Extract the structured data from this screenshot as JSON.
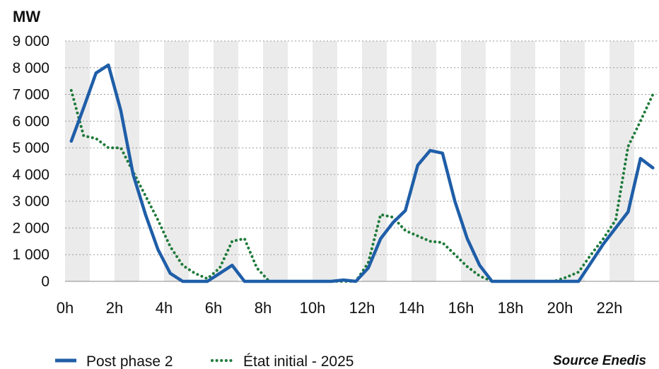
{
  "chart_data": {
    "type": "line",
    "unit_label": "MW",
    "ylim": [
      0,
      9000
    ],
    "yticks": [
      0,
      1000,
      2000,
      3000,
      4000,
      5000,
      6000,
      7000,
      8000,
      9000
    ],
    "ytick_labels": [
      "0",
      "1 000",
      "2 000",
      "3 000",
      "4 000",
      "5 000",
      "6 000",
      "7 000",
      "8 000",
      "9 000"
    ],
    "xlim": [
      0,
      24
    ],
    "xticks": [
      0,
      2,
      4,
      6,
      8,
      10,
      12,
      14,
      16,
      18,
      20,
      22
    ],
    "xtick_labels": [
      "0h",
      "2h",
      "4h",
      "6h",
      "8h",
      "10h",
      "12h",
      "14h",
      "16h",
      "18h",
      "20h",
      "22h"
    ],
    "grid": true,
    "legend_position": "bottom-left",
    "series": [
      {
        "name": "Post phase 2",
        "style": "solid",
        "color": "#1f5ea8",
        "x": [
          0.25,
          0.75,
          1.25,
          1.75,
          2.25,
          2.75,
          3.25,
          3.75,
          4.25,
          4.75,
          5.25,
          5.75,
          6.25,
          6.75,
          7.25,
          7.75,
          8.25,
          8.75,
          9.25,
          9.75,
          10.25,
          10.75,
          11.25,
          11.75,
          12.25,
          12.75,
          13.25,
          13.75,
          14.25,
          14.75,
          15.25,
          15.75,
          16.25,
          16.75,
          17.25,
          17.75,
          18.25,
          18.75,
          19.25,
          19.75,
          20.25,
          20.75,
          21.25,
          21.75,
          22.25,
          22.75,
          23.25,
          23.75
        ],
        "values": [
          5250,
          6500,
          7800,
          8100,
          6400,
          4000,
          2500,
          1200,
          300,
          0,
          0,
          0,
          300,
          600,
          0,
          0,
          0,
          0,
          0,
          0,
          0,
          0,
          50,
          0,
          500,
          1600,
          2200,
          2650,
          4350,
          4900,
          4800,
          3000,
          1600,
          600,
          0,
          0,
          0,
          0,
          0,
          0,
          0,
          0,
          700,
          1400,
          2000,
          2600,
          4600,
          4250
        ]
      },
      {
        "name": "État initial - 2025",
        "style": "dotted",
        "color": "#1e7a3a",
        "x": [
          0.25,
          0.75,
          1.25,
          1.75,
          2.25,
          2.75,
          3.25,
          3.75,
          4.25,
          4.75,
          5.25,
          5.75,
          6.25,
          6.75,
          7.25,
          7.75,
          8.25,
          8.75,
          9.25,
          9.75,
          10.25,
          10.75,
          11.25,
          11.75,
          12.25,
          12.75,
          13.25,
          13.75,
          14.25,
          14.75,
          15.25,
          15.75,
          16.25,
          16.75,
          17.25,
          17.75,
          18.25,
          18.75,
          19.25,
          19.75,
          20.25,
          20.75,
          21.25,
          21.75,
          22.25,
          22.75,
          23.25,
          23.75
        ],
        "values": [
          7150,
          5450,
          5350,
          5000,
          5000,
          4100,
          3200,
          2300,
          1300,
          600,
          300,
          100,
          500,
          1500,
          1600,
          500,
          0,
          0,
          0,
          0,
          0,
          0,
          0,
          0,
          700,
          2500,
          2400,
          1900,
          1700,
          1500,
          1450,
          1000,
          550,
          200,
          0,
          0,
          0,
          0,
          0,
          0,
          150,
          350,
          1000,
          1600,
          2300,
          5050,
          6000,
          7000
        ]
      }
    ],
    "source": "Source Enedis"
  }
}
